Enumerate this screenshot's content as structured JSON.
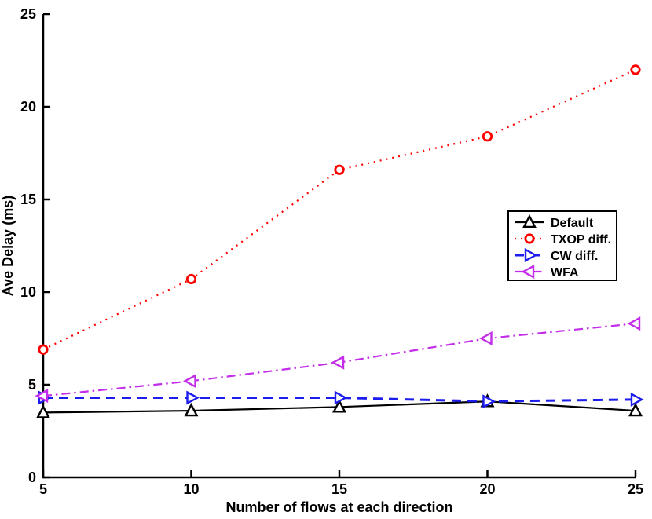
{
  "figure": {
    "background": "#ffffff",
    "axis_color": "#000000"
  },
  "chart_data": {
    "type": "line",
    "x": [
      5,
      10,
      15,
      20,
      25
    ],
    "series": [
      {
        "name": "Default",
        "color": "#000000",
        "dash": "solid",
        "marker": "triangle-up",
        "values": [
          3.5,
          3.6,
          3.8,
          4.1,
          3.6
        ]
      },
      {
        "name": "TXOP diff.",
        "color": "#ff0000",
        "dash": "dotted",
        "marker": "circle",
        "values": [
          6.9,
          10.7,
          16.6,
          18.4,
          22.0
        ]
      },
      {
        "name": "CW diff.",
        "color": "#1c1cee",
        "dash": "dashed",
        "marker": "triangle-right",
        "values": [
          4.3,
          4.3,
          4.3,
          4.1,
          4.2
        ]
      },
      {
        "name": "WFA",
        "color": "#c32ce8",
        "dash": "dashdot",
        "marker": "triangle-left",
        "values": [
          4.4,
          5.2,
          6.2,
          7.5,
          8.3
        ]
      }
    ],
    "title": "",
    "xlabel": "Number of flows at each direction",
    "ylabel": "Ave Delay (ms)",
    "xlim": [
      5,
      25
    ],
    "ylim": [
      0,
      25
    ],
    "x_ticks": [
      5,
      10,
      15,
      20,
      25
    ],
    "y_ticks": [
      0,
      5,
      10,
      15,
      20,
      25
    ],
    "grid": false,
    "legend_position": "middle-right",
    "legend_border": "#000000",
    "legend_background": "#ffffff"
  }
}
